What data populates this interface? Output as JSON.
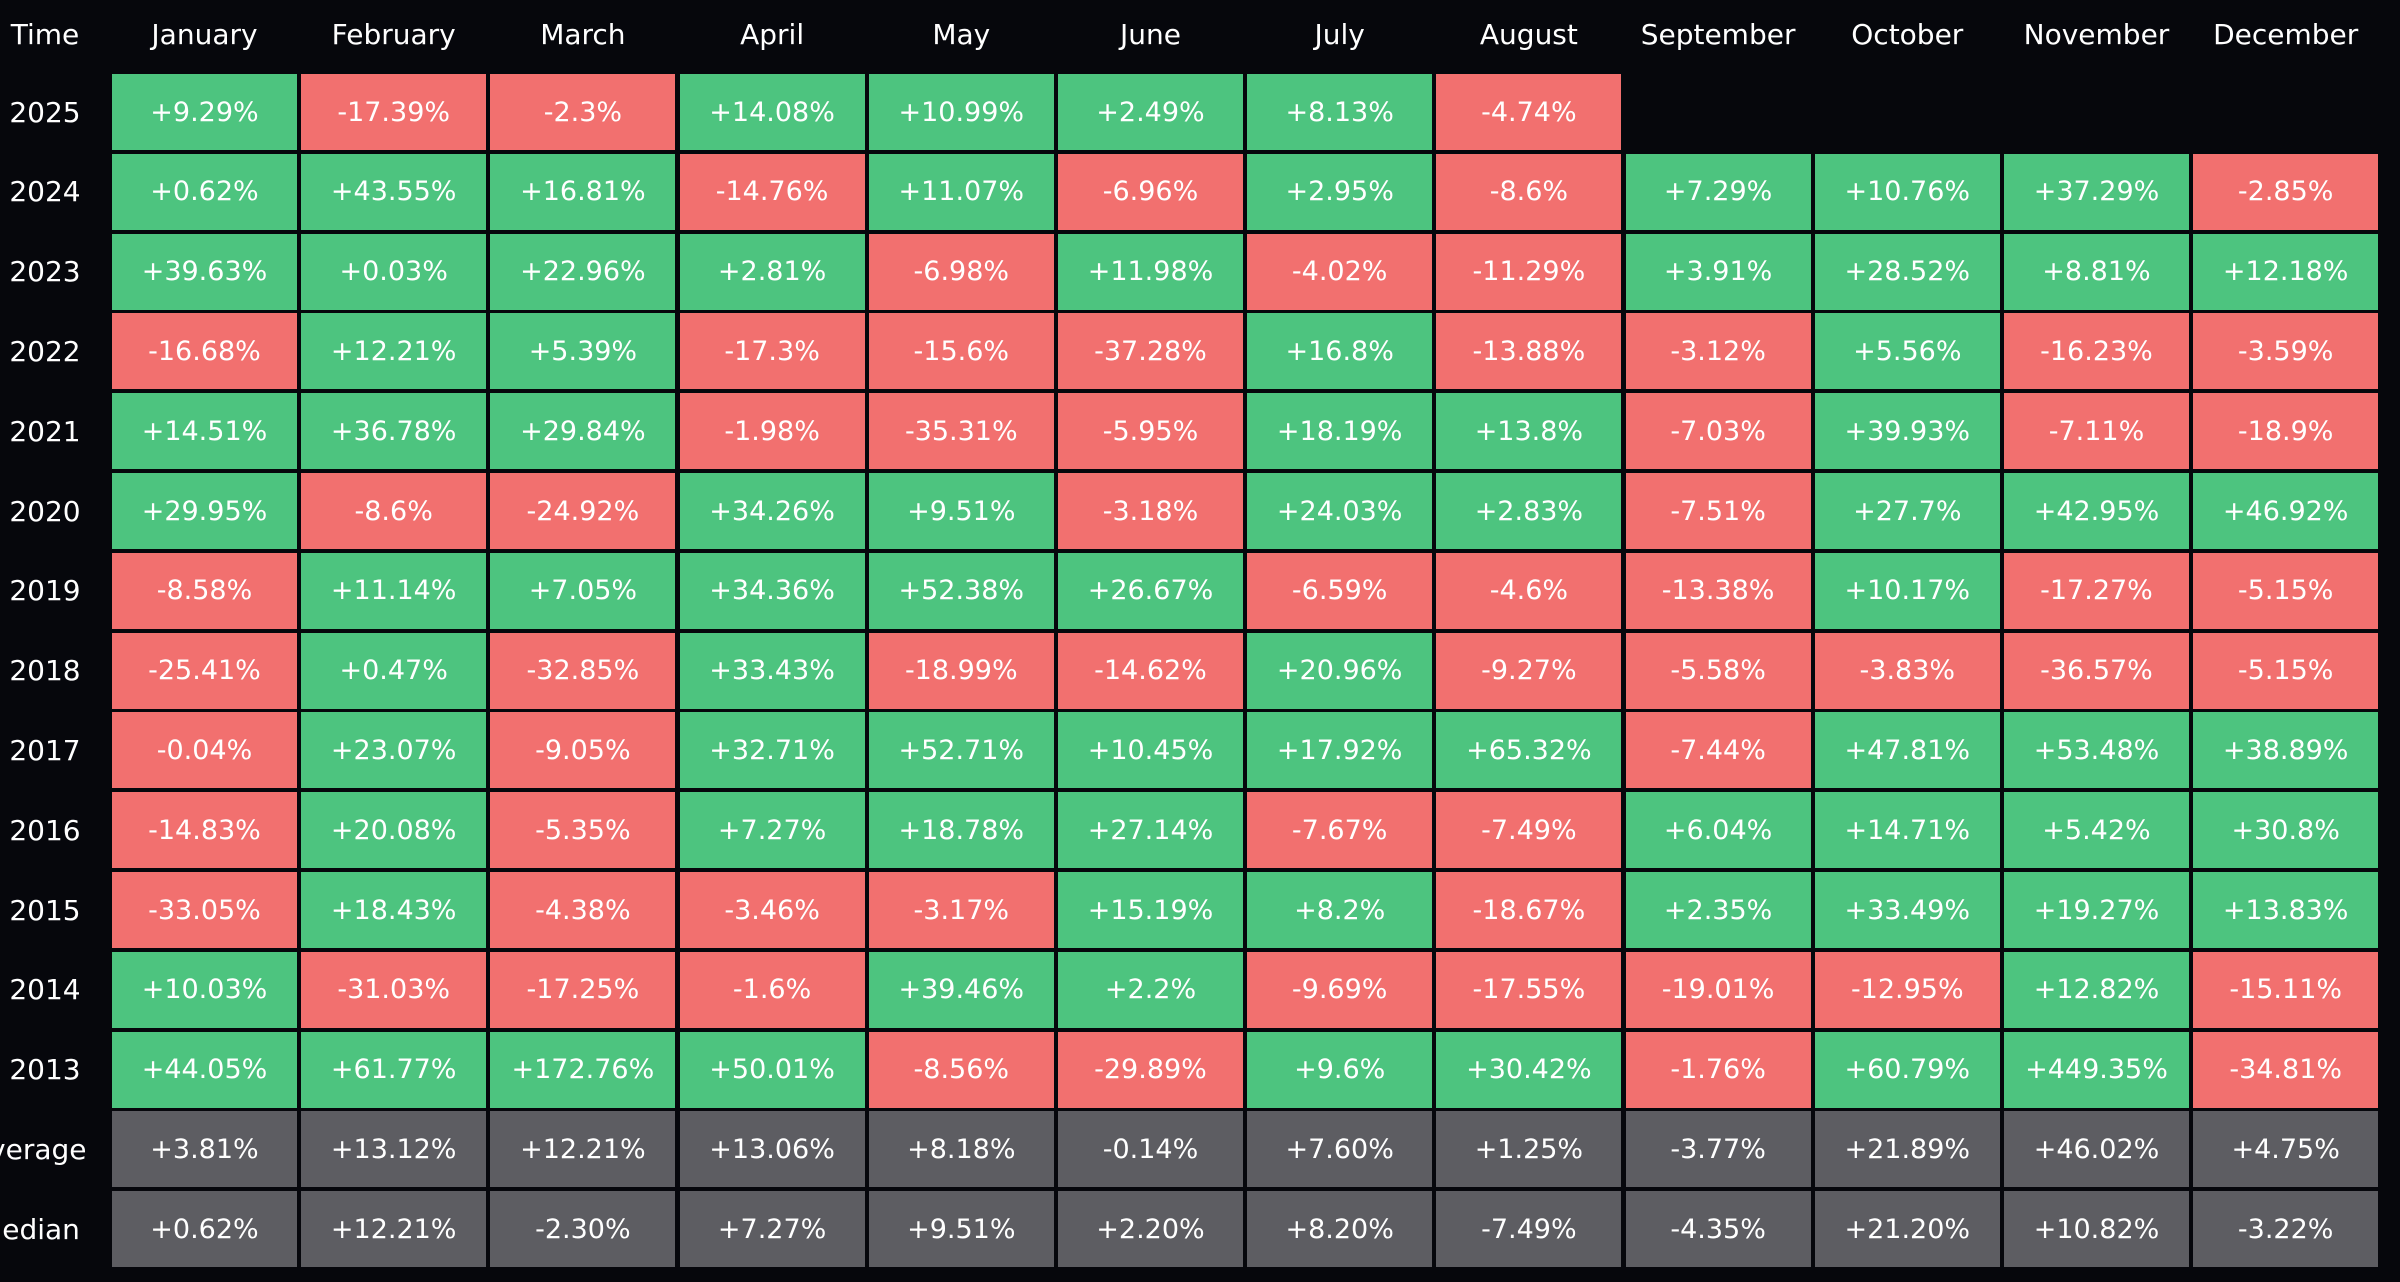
{
  "colors": {
    "positive": "#4dc47f",
    "negative": "#f2706f",
    "stat": "#5d5d62",
    "background": "#06070c",
    "text": "#ffffff"
  },
  "header": {
    "time_label": "Time",
    "months": [
      "January",
      "February",
      "March",
      "April",
      "May",
      "June",
      "July",
      "August",
      "September",
      "October",
      "November",
      "December"
    ]
  },
  "rows": [
    {
      "label": "2025",
      "values": [
        "+9.29%",
        "-17.39%",
        "-2.3%",
        "+14.08%",
        "+10.99%",
        "+2.49%",
        "+8.13%",
        "-4.74%",
        "",
        "",
        "",
        ""
      ]
    },
    {
      "label": "2024",
      "values": [
        "+0.62%",
        "+43.55%",
        "+16.81%",
        "-14.76%",
        "+11.07%",
        "-6.96%",
        "+2.95%",
        "-8.6%",
        "+7.29%",
        "+10.76%",
        "+37.29%",
        "-2.85%"
      ]
    },
    {
      "label": "2023",
      "values": [
        "+39.63%",
        "+0.03%",
        "+22.96%",
        "+2.81%",
        "-6.98%",
        "+11.98%",
        "-4.02%",
        "-11.29%",
        "+3.91%",
        "+28.52%",
        "+8.81%",
        "+12.18%"
      ]
    },
    {
      "label": "2022",
      "values": [
        "-16.68%",
        "+12.21%",
        "+5.39%",
        "-17.3%",
        "-15.6%",
        "-37.28%",
        "+16.8%",
        "-13.88%",
        "-3.12%",
        "+5.56%",
        "-16.23%",
        "-3.59%"
      ]
    },
    {
      "label": "2021",
      "values": [
        "+14.51%",
        "+36.78%",
        "+29.84%",
        "-1.98%",
        "-35.31%",
        "-5.95%",
        "+18.19%",
        "+13.8%",
        "-7.03%",
        "+39.93%",
        "-7.11%",
        "-18.9%"
      ]
    },
    {
      "label": "2020",
      "values": [
        "+29.95%",
        "-8.6%",
        "-24.92%",
        "+34.26%",
        "+9.51%",
        "-3.18%",
        "+24.03%",
        "+2.83%",
        "-7.51%",
        "+27.7%",
        "+42.95%",
        "+46.92%"
      ]
    },
    {
      "label": "2019",
      "values": [
        "-8.58%",
        "+11.14%",
        "+7.05%",
        "+34.36%",
        "+52.38%",
        "+26.67%",
        "-6.59%",
        "-4.6%",
        "-13.38%",
        "+10.17%",
        "-17.27%",
        "-5.15%"
      ]
    },
    {
      "label": "2018",
      "values": [
        "-25.41%",
        "+0.47%",
        "-32.85%",
        "+33.43%",
        "-18.99%",
        "-14.62%",
        "+20.96%",
        "-9.27%",
        "-5.58%",
        "-3.83%",
        "-36.57%",
        "-5.15%"
      ]
    },
    {
      "label": "2017",
      "values": [
        "-0.04%",
        "+23.07%",
        "-9.05%",
        "+32.71%",
        "+52.71%",
        "+10.45%",
        "+17.92%",
        "+65.32%",
        "-7.44%",
        "+47.81%",
        "+53.48%",
        "+38.89%"
      ]
    },
    {
      "label": "2016",
      "values": [
        "-14.83%",
        "+20.08%",
        "-5.35%",
        "+7.27%",
        "+18.78%",
        "+27.14%",
        "-7.67%",
        "-7.49%",
        "+6.04%",
        "+14.71%",
        "+5.42%",
        "+30.8%"
      ]
    },
    {
      "label": "2015",
      "values": [
        "-33.05%",
        "+18.43%",
        "-4.38%",
        "-3.46%",
        "-3.17%",
        "+15.19%",
        "+8.2%",
        "-18.67%",
        "+2.35%",
        "+33.49%",
        "+19.27%",
        "+13.83%"
      ]
    },
    {
      "label": "2014",
      "values": [
        "+10.03%",
        "-31.03%",
        "-17.25%",
        "-1.6%",
        "+39.46%",
        "+2.2%",
        "-9.69%",
        "-17.55%",
        "-19.01%",
        "-12.95%",
        "+12.82%",
        "-15.11%"
      ]
    },
    {
      "label": "2013",
      "values": [
        "+44.05%",
        "+61.77%",
        "+172.76%",
        "+50.01%",
        "-8.56%",
        "-29.89%",
        "+9.6%",
        "+30.42%",
        "-1.76%",
        "+60.79%",
        "+449.35%",
        "-34.81%"
      ]
    }
  ],
  "summary": [
    {
      "label": "Average",
      "values": [
        "+3.81%",
        "+13.12%",
        "+12.21%",
        "+13.06%",
        "+8.18%",
        "-0.14%",
        "+7.60%",
        "+1.25%",
        "-3.77%",
        "+21.89%",
        "+46.02%",
        "+4.75%"
      ]
    },
    {
      "label": "Median",
      "values": [
        "+0.62%",
        "+12.21%",
        "-2.30%",
        "+7.27%",
        "+9.51%",
        "+2.20%",
        "+8.20%",
        "-7.49%",
        "-4.35%",
        "+21.20%",
        "+10.82%",
        "-3.22%"
      ]
    }
  ]
}
